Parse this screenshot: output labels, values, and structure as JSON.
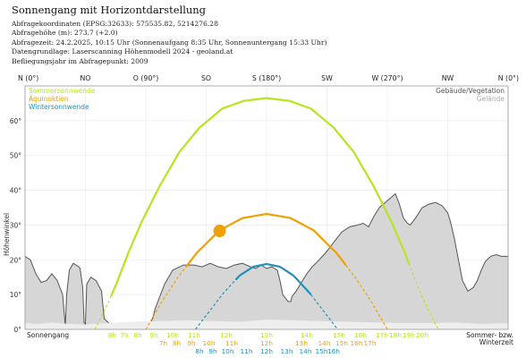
{
  "header": {
    "title": "Sonnengang mit Horizontdarstellung",
    "lines": [
      "Abfragekoordinaten (EPSG:32633): 575535.82, 5214276.28",
      "Abfragehöhe (m): 273.7 (+2.0)",
      "Abfragezeit: 24.2.2025, 10:15 Uhr (Sonnenaufgang 8:35 Uhr,  Sonnenuntergang 15:33 Uhr)",
      "Datengrundlage: Laserscanning Höhenmodell 2024 - geoland.at",
      "Befliegungsjahr im Abfragepunkt: 2009"
    ]
  },
  "chart_data": {
    "type": "line",
    "ylabel": "Höhenwinkel",
    "xlim": [
      0,
      360
    ],
    "ylim": [
      0,
      70
    ],
    "grid": true,
    "legend_placement": "top-left",
    "colors": {
      "summer": "#b5e61d",
      "equinox": "#f0a000",
      "winter": "#2090b8",
      "terrain_fill": "#d6d6d6",
      "terrain_line": "#555555",
      "building_fill": "#eeeeee",
      "sun": "#f0a000",
      "grid": "#ededed"
    },
    "direction_ticks": [
      {
        "x": 0,
        "label": "N (0°)"
      },
      {
        "x": 45,
        "label": "NO"
      },
      {
        "x": 90,
        "label": "O (90°)"
      },
      {
        "x": 135,
        "label": "SO"
      },
      {
        "x": 180,
        "label": "S (180°)"
      },
      {
        "x": 225,
        "label": "SW"
      },
      {
        "x": 270,
        "label": "W (270°)"
      },
      {
        "x": 315,
        "label": "NW"
      },
      {
        "x": 360,
        "label": "N (0°)"
      }
    ],
    "y_ticks": [
      {
        "y": 0,
        "label": "0°"
      },
      {
        "y": 10,
        "label": "10°"
      },
      {
        "y": 20,
        "label": "20°"
      },
      {
        "y": 30,
        "label": "30°"
      },
      {
        "y": 40,
        "label": "40°"
      },
      {
        "y": 50,
        "label": "50°"
      },
      {
        "y": 60,
        "label": "60°"
      }
    ],
    "legend_left": [
      {
        "name": "Sommersonnwende",
        "color_key": "summer"
      },
      {
        "name": "Äquinoktien",
        "color_key": "equinox"
      },
      {
        "name": "Wintersonnwende",
        "color_key": "winter"
      }
    ],
    "legend_right": [
      {
        "name": "Gebäude/Vegetation",
        "color": "#555555"
      },
      {
        "name": "Gelände",
        "color": "#aaaaaa"
      }
    ],
    "series": [
      {
        "name": "Sommersonnwende",
        "color_key": "summer",
        "points": [
          [
            52,
            0
          ],
          [
            60,
            6
          ],
          [
            68,
            13
          ],
          [
            77,
            22
          ],
          [
            87,
            31
          ],
          [
            100,
            41
          ],
          [
            115,
            51
          ],
          [
            130,
            58
          ],
          [
            147,
            63.5
          ],
          [
            163,
            65.7
          ],
          [
            180,
            66.5
          ],
          [
            197,
            65.7
          ],
          [
            213,
            63.5
          ],
          [
            230,
            58
          ],
          [
            245,
            51
          ],
          [
            260,
            41
          ],
          [
            273,
            31
          ],
          [
            283,
            22
          ],
          [
            292,
            13
          ],
          [
            300,
            6
          ],
          [
            308,
            0
          ]
        ],
        "visible_from": 64,
        "visible_to": 286
      },
      {
        "name": "Äquinoktien",
        "color_key": "equinox",
        "points": [
          [
            90,
            0
          ],
          [
            102,
            8
          ],
          [
            114,
            15
          ],
          [
            128,
            22
          ],
          [
            145,
            28.5
          ],
          [
            162,
            32
          ],
          [
            180,
            33.2
          ],
          [
            198,
            32
          ],
          [
            215,
            28.5
          ],
          [
            232,
            22
          ],
          [
            246,
            15
          ],
          [
            258,
            8
          ],
          [
            270,
            0
          ]
        ],
        "visible_from": 120,
        "visible_to": 239
      },
      {
        "name": "Wintersonnwende",
        "color_key": "winter",
        "points": [
          [
            127,
            0
          ],
          [
            137,
            5
          ],
          [
            148,
            10.5
          ],
          [
            160,
            15.5
          ],
          [
            170,
            18
          ],
          [
            180,
            18.8
          ],
          [
            190,
            18
          ],
          [
            200,
            15.5
          ],
          [
            212,
            10.5
          ],
          [
            223,
            5
          ],
          [
            233,
            0
          ]
        ],
        "visible_from": 157,
        "visible_to": 213
      }
    ],
    "terrain": [
      [
        0,
        21
      ],
      [
        4,
        20
      ],
      [
        8,
        16
      ],
      [
        12,
        13.5
      ],
      [
        16,
        14
      ],
      [
        20,
        16
      ],
      [
        24,
        14
      ],
      [
        28,
        10
      ],
      [
        30,
        1
      ],
      [
        31,
        10
      ],
      [
        33,
        17
      ],
      [
        36,
        19
      ],
      [
        40,
        18
      ],
      [
        41,
        17.5
      ],
      [
        43,
        12
      ],
      [
        44,
        2
      ],
      [
        45,
        1.5
      ],
      [
        46,
        13
      ],
      [
        49,
        15
      ],
      [
        53,
        14
      ],
      [
        57,
        11
      ],
      [
        59,
        3
      ],
      [
        62,
        2
      ],
      [
        64,
        1
      ],
      [
        92,
        1
      ],
      [
        95,
        3
      ],
      [
        97,
        6
      ],
      [
        100,
        9
      ],
      [
        104,
        13
      ],
      [
        110,
        17
      ],
      [
        118,
        18.5
      ],
      [
        126,
        18.5
      ],
      [
        132,
        18
      ],
      [
        138,
        19
      ],
      [
        144,
        18
      ],
      [
        150,
        17.5
      ],
      [
        156,
        18.5
      ],
      [
        162,
        19
      ],
      [
        168,
        18
      ],
      [
        172,
        17.5
      ],
      [
        176,
        18.5
      ],
      [
        180,
        17.5
      ],
      [
        184,
        18
      ],
      [
        188,
        17
      ],
      [
        190,
        14
      ],
      [
        192,
        10
      ],
      [
        194,
        9
      ],
      [
        196,
        8
      ],
      [
        198,
        8
      ],
      [
        199,
        9.5
      ],
      [
        202,
        11
      ],
      [
        206,
        13.5
      ],
      [
        210,
        16
      ],
      [
        214,
        18
      ],
      [
        218,
        19.5
      ],
      [
        224,
        22
      ],
      [
        230,
        25
      ],
      [
        236,
        28
      ],
      [
        242,
        29.5
      ],
      [
        248,
        30
      ],
      [
        252,
        30.5
      ],
      [
        256,
        29.5
      ],
      [
        260,
        32.5
      ],
      [
        264,
        35
      ],
      [
        270,
        37
      ],
      [
        276,
        39
      ],
      [
        279,
        36
      ],
      [
        282,
        32
      ],
      [
        285,
        30.5
      ],
      [
        287,
        30
      ],
      [
        291,
        32
      ],
      [
        296,
        35
      ],
      [
        301,
        36
      ],
      [
        306,
        36.5
      ],
      [
        311,
        35.5
      ],
      [
        315,
        33.5
      ],
      [
        317,
        31
      ],
      [
        320,
        26
      ],
      [
        323,
        20
      ],
      [
        326,
        14
      ],
      [
        330,
        11
      ],
      [
        334,
        12
      ],
      [
        337,
        14
      ],
      [
        340,
        17
      ],
      [
        343,
        19.5
      ],
      [
        347,
        21
      ],
      [
        351,
        21.5
      ],
      [
        355,
        21
      ],
      [
        360,
        21
      ]
    ],
    "buildings": [
      [
        0,
        1.8
      ],
      [
        10,
        1.5
      ],
      [
        20,
        2
      ],
      [
        30,
        1.6
      ],
      [
        44,
        1.4
      ],
      [
        60,
        1.8
      ],
      [
        80,
        2.2
      ],
      [
        100,
        2.4
      ],
      [
        120,
        2.6
      ],
      [
        140,
        2.4
      ],
      [
        160,
        2.2
      ],
      [
        180,
        2.8
      ],
      [
        200,
        2.6
      ],
      [
        220,
        2.4
      ],
      [
        240,
        2.2
      ],
      [
        260,
        2
      ],
      [
        280,
        1.8
      ],
      [
        300,
        1.8
      ],
      [
        320,
        2
      ],
      [
        340,
        1.6
      ],
      [
        360,
        1.8
      ]
    ],
    "sun_position": {
      "azimuth": 145,
      "elevation": 28.3
    },
    "hour_marks": {
      "summer": [
        {
          "az": 65,
          "label": "6h"
        },
        {
          "az": 74,
          "label": "7h"
        },
        {
          "az": 84,
          "label": "8h"
        },
        {
          "az": 96,
          "label": "9h"
        },
        {
          "az": 110,
          "label": "10h"
        },
        {
          "az": 126,
          "label": "11h"
        },
        {
          "az": 150,
          "label": "12h"
        },
        {
          "az": 180,
          "label": "13h"
        },
        {
          "az": 210,
          "label": "14h"
        },
        {
          "az": 234,
          "label": "15h"
        },
        {
          "az": 250,
          "label": "16h"
        },
        {
          "az": 266,
          "label": "17h"
        },
        {
          "az": 276,
          "label": "18h"
        },
        {
          "az": 286,
          "label": "19h"
        },
        {
          "az": 296,
          "label": "20h"
        }
      ],
      "equinox": [
        {
          "az": 103,
          "label": "7h"
        },
        {
          "az": 113,
          "label": "8h"
        },
        {
          "az": 124,
          "label": "9h"
        },
        {
          "az": 137,
          "label": "10h"
        },
        {
          "az": 154,
          "label": "11h"
        },
        {
          "az": 180,
          "label": "12h"
        },
        {
          "az": 206,
          "label": "13h"
        },
        {
          "az": 223,
          "label": "14h"
        },
        {
          "az": 236,
          "label": "15h"
        },
        {
          "az": 247,
          "label": "16h"
        },
        {
          "az": 257,
          "label": "17h"
        }
      ],
      "winter": [
        {
          "az": 130,
          "label": "8h"
        },
        {
          "az": 140,
          "label": "9h"
        },
        {
          "az": 151,
          "label": "10h"
        },
        {
          "az": 165,
          "label": "11h"
        },
        {
          "az": 180,
          "label": "12h"
        },
        {
          "az": 195,
          "label": "13h"
        },
        {
          "az": 209,
          "label": "14h"
        },
        {
          "az": 221,
          "label": "15h"
        },
        {
          "az": 230,
          "label": "16h"
        }
      ]
    },
    "bottom_left_label": "Sonnengang",
    "bottom_right_label": "Sommer- bzw.\nWinterzeit"
  }
}
